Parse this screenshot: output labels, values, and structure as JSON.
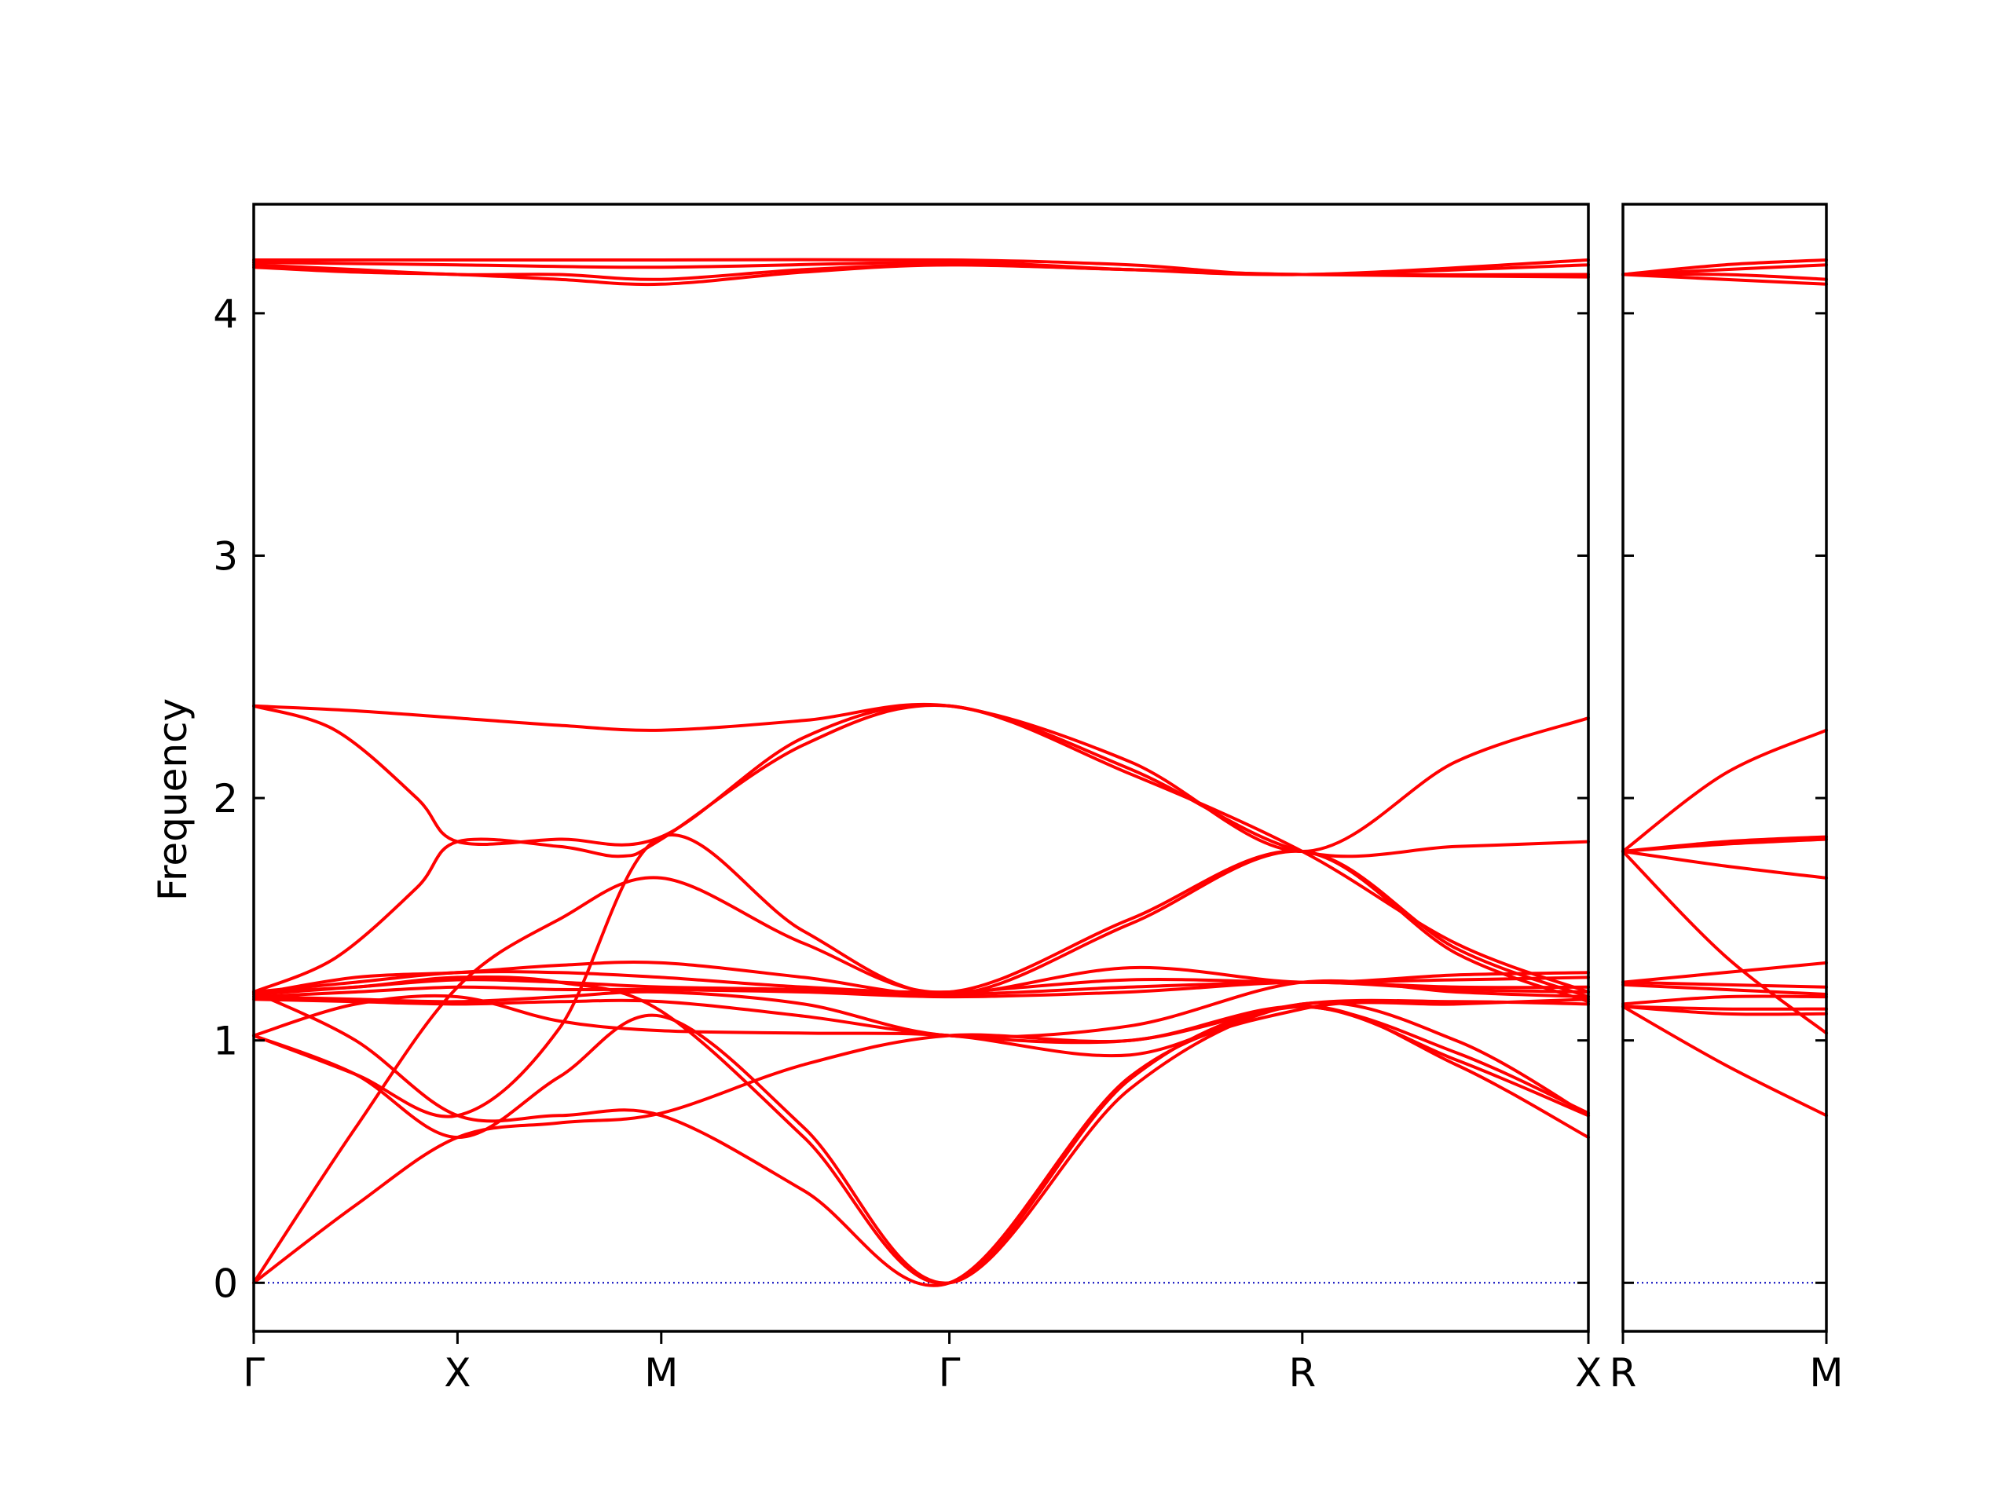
{
  "chart_data": {
    "type": "line",
    "title": "",
    "ylabel": "Frequency",
    "xlabel": "",
    "ylim": [
      -0.2,
      4.45
    ],
    "yticks": [
      0,
      1,
      2,
      3,
      4
    ],
    "grid": false,
    "zero_line": 0,
    "colors": {
      "bands": "#ff0000",
      "zero_line": "#0000bb"
    },
    "panels": [
      {
        "name": "main",
        "xlim": [
          0,
          6.55
        ],
        "kpoints": [
          {
            "label": "Γ",
            "x": 0
          },
          {
            "label": "X",
            "x": 1
          },
          {
            "label": "M",
            "x": 2
          },
          {
            "label": "Γ",
            "x": 3.414
          },
          {
            "label": "R",
            "x": 5.146
          },
          {
            "label": "X",
            "x": 6.55
          }
        ],
        "bands": [
          [
            [
              0,
              4.22
            ],
            [
              1,
              4.22
            ],
            [
              2,
              4.22
            ],
            [
              3.414,
              4.22
            ],
            [
              4.3,
              4.2
            ],
            [
              5.146,
              4.16
            ],
            [
              6.55,
              4.22
            ]
          ],
          [
            [
              0,
              4.21
            ],
            [
              1,
              4.2
            ],
            [
              2,
              4.19
            ],
            [
              3.414,
              4.21
            ],
            [
              4.3,
              4.18
            ],
            [
              5.146,
              4.16
            ],
            [
              6.55,
              4.2
            ]
          ],
          [
            [
              0,
              4.2
            ],
            [
              0.5,
              4.18
            ],
            [
              1,
              4.16
            ],
            [
              1.5,
              4.16
            ],
            [
              2,
              4.14
            ],
            [
              2.7,
              4.18
            ],
            [
              3.414,
              4.2
            ],
            [
              4.3,
              4.18
            ],
            [
              5.146,
              4.16
            ],
            [
              6.55,
              4.16
            ]
          ],
          [
            [
              0,
              4.19
            ],
            [
              0.5,
              4.17
            ],
            [
              1,
              4.16
            ],
            [
              1.5,
              4.14
            ],
            [
              2,
              4.12
            ],
            [
              2.7,
              4.17
            ],
            [
              3.414,
              4.2
            ],
            [
              4.3,
              4.18
            ],
            [
              5.146,
              4.16
            ],
            [
              6.55,
              4.15
            ]
          ],
          [
            [
              0,
              2.38
            ],
            [
              0.5,
              2.36
            ],
            [
              1,
              2.33
            ],
            [
              1.5,
              2.3
            ],
            [
              2,
              2.28
            ],
            [
              2.7,
              2.32
            ],
            [
              3.414,
              2.38
            ],
            [
              4.3,
              2.15
            ],
            [
              5.146,
              1.78
            ],
            [
              5.9,
              2.15
            ],
            [
              6.55,
              2.33
            ]
          ],
          [
            [
              0,
              2.38
            ],
            [
              0.4,
              2.28
            ],
            [
              0.8,
              2.0
            ],
            [
              1,
              1.82
            ],
            [
              1.5,
              1.83
            ],
            [
              2,
              1.84
            ],
            [
              2.7,
              2.25
            ],
            [
              3.414,
              2.38
            ],
            [
              4.3,
              2.12
            ],
            [
              5.146,
              1.78
            ],
            [
              5.9,
              1.8
            ],
            [
              6.55,
              1.82
            ]
          ],
          [
            [
              0,
              1.2
            ],
            [
              0.4,
              1.34
            ],
            [
              0.8,
              1.63
            ],
            [
              1,
              1.82
            ],
            [
              1.5,
              1.8
            ],
            [
              1.8,
              1.76
            ],
            [
              2,
              1.83
            ],
            [
              2.7,
              2.22
            ],
            [
              3.414,
              2.38
            ],
            [
              4.3,
              2.1
            ],
            [
              5.146,
              1.78
            ],
            [
              5.9,
              1.4
            ],
            [
              6.55,
              1.2
            ]
          ],
          [
            [
              0,
              1.02
            ],
            [
              0.5,
              0.86
            ],
            [
              1,
              0.69
            ],
            [
              1.5,
              1.05
            ],
            [
              2,
              1.84
            ],
            [
              2.7,
              1.45
            ],
            [
              3.414,
              1.19
            ],
            [
              4.3,
              1.48
            ],
            [
              5.146,
              1.78
            ],
            [
              5.9,
              1.38
            ],
            [
              6.55,
              1.18
            ]
          ],
          [
            [
              0,
              0
            ],
            [
              0.5,
              0.64
            ],
            [
              1,
              1.22
            ],
            [
              1.5,
              1.5
            ],
            [
              2,
              1.67
            ],
            [
              2.7,
              1.4
            ],
            [
              3.414,
              1.2
            ],
            [
              4.3,
              1.5
            ],
            [
              5.146,
              1.78
            ],
            [
              5.9,
              1.36
            ],
            [
              6.55,
              1.16
            ]
          ],
          [
            [
              0,
              1.19
            ],
            [
              0.5,
              1.26
            ],
            [
              1,
              1.28
            ],
            [
              1.5,
              1.31
            ],
            [
              2,
              1.32
            ],
            [
              2.7,
              1.26
            ],
            [
              3.414,
              1.19
            ],
            [
              4.3,
              1.3
            ],
            [
              5.146,
              1.24
            ],
            [
              5.9,
              1.27
            ],
            [
              6.55,
              1.28
            ]
          ],
          [
            [
              0,
              1.2
            ],
            [
              0.5,
              1.24
            ],
            [
              1,
              1.28
            ],
            [
              1.5,
              1.28
            ],
            [
              2,
              1.26
            ],
            [
              2.7,
              1.22
            ],
            [
              3.414,
              1.2
            ],
            [
              4.3,
              1.25
            ],
            [
              5.146,
              1.24
            ],
            [
              5.9,
              1.25
            ],
            [
              6.55,
              1.26
            ]
          ],
          [
            [
              0,
              1.19
            ],
            [
              0.5,
              1.22
            ],
            [
              1,
              1.25
            ],
            [
              1.5,
              1.24
            ],
            [
              2,
              1.22
            ],
            [
              2.7,
              1.21
            ],
            [
              3.414,
              1.19
            ],
            [
              4.3,
              1.22
            ],
            [
              5.146,
              1.24
            ],
            [
              5.9,
              1.22
            ],
            [
              6.55,
              1.22
            ]
          ],
          [
            [
              0,
              1.18
            ],
            [
              0.5,
              1.2
            ],
            [
              1,
              1.22
            ],
            [
              1.5,
              1.21
            ],
            [
              2,
              1.21
            ],
            [
              2.7,
              1.2
            ],
            [
              3.414,
              1.18
            ],
            [
              4.3,
              1.2
            ],
            [
              5.146,
              1.24
            ],
            [
              5.9,
              1.21
            ],
            [
              6.55,
              1.2
            ]
          ],
          [
            [
              0,
              1.18
            ],
            [
              0.5,
              1.17
            ],
            [
              1,
              1.16
            ],
            [
              1.5,
              1.18
            ],
            [
              2,
              1.2
            ],
            [
              2.7,
              1.15
            ],
            [
              3.414,
              1.02
            ],
            [
              4.3,
              1.06
            ],
            [
              5.146,
              1.24
            ],
            [
              5.9,
              1.2
            ],
            [
              6.55,
              1.18
            ]
          ],
          [
            [
              0,
              1.17
            ],
            [
              0.5,
              1.16
            ],
            [
              1,
              1.15
            ],
            [
              1.5,
              1.16
            ],
            [
              2,
              1.16
            ],
            [
              2.7,
              1.1
            ],
            [
              3.414,
              1.02
            ],
            [
              4.3,
              1.0
            ],
            [
              5.146,
              1.15
            ],
            [
              5.9,
              1.16
            ],
            [
              6.55,
              1.15
            ]
          ],
          [
            [
              0,
              1.02
            ],
            [
              0.5,
              1.15
            ],
            [
              1,
              1.18
            ],
            [
              1.5,
              1.08
            ],
            [
              2,
              1.04
            ],
            [
              2.7,
              1.03
            ],
            [
              3.414,
              1.02
            ],
            [
              4.3,
              0.94
            ],
            [
              5.146,
              1.14
            ],
            [
              5.9,
              0.92
            ],
            [
              6.55,
              0.69
            ]
          ],
          [
            [
              0,
              1.2
            ],
            [
              0.5,
              1.22
            ],
            [
              1,
              1.26
            ],
            [
              1.5,
              1.24
            ],
            [
              2,
              1.12
            ],
            [
              2.7,
              0.6
            ],
            [
              3.414,
              0
            ],
            [
              4.3,
              0.84
            ],
            [
              5.146,
              1.14
            ],
            [
              5.9,
              0.9
            ],
            [
              6.55,
              0.6
            ]
          ],
          [
            [
              0,
              0
            ],
            [
              0.5,
              0.32
            ],
            [
              1,
              0.6
            ],
            [
              1.5,
              0.66
            ],
            [
              2,
              0.7
            ],
            [
              2.7,
              0.9
            ],
            [
              3.414,
              1.02
            ],
            [
              4.3,
              1.0
            ],
            [
              5.146,
              1.14
            ],
            [
              5.9,
              0.95
            ],
            [
              6.55,
              0.7
            ]
          ],
          [
            [
              0,
              1.02
            ],
            [
              0.5,
              0.86
            ],
            [
              1,
              0.6
            ],
            [
              1.5,
              0.85
            ],
            [
              2,
              1.1
            ],
            [
              2.7,
              0.64
            ],
            [
              3.414,
              0
            ],
            [
              4.3,
              0.8
            ],
            [
              5.146,
              1.15
            ],
            [
              5.9,
              1.0
            ],
            [
              6.55,
              0.69
            ]
          ],
          [
            [
              0,
              1.2
            ],
            [
              0.5,
              1.0
            ],
            [
              1,
              0.69
            ],
            [
              1.5,
              0.69
            ],
            [
              2,
              0.69
            ],
            [
              2.7,
              0.38
            ],
            [
              3.414,
              0
            ],
            [
              4.3,
              0.85
            ],
            [
              5.146,
              1.13
            ],
            [
              5.9,
              1.15
            ],
            [
              6.55,
              1.17
            ]
          ]
        ]
      },
      {
        "name": "right",
        "xlim": [
          0,
          1
        ],
        "kpoints": [
          {
            "label": "R",
            "x": 0
          },
          {
            "label": "M",
            "x": 1
          }
        ],
        "bands": [
          [
            [
              0,
              4.16
            ],
            [
              0.5,
              4.2
            ],
            [
              1,
              4.22
            ]
          ],
          [
            [
              0,
              4.16
            ],
            [
              0.5,
              4.18
            ],
            [
              1,
              4.2
            ]
          ],
          [
            [
              0,
              4.16
            ],
            [
              0.5,
              4.16
            ],
            [
              1,
              4.14
            ]
          ],
          [
            [
              0,
              4.16
            ],
            [
              0.5,
              4.14
            ],
            [
              1,
              4.12
            ]
          ],
          [
            [
              0,
              1.78
            ],
            [
              0.5,
              2.1
            ],
            [
              1,
              2.28
            ]
          ],
          [
            [
              0,
              1.78
            ],
            [
              0.5,
              1.82
            ],
            [
              1,
              1.84
            ]
          ],
          [
            [
              0,
              1.78
            ],
            [
              0.5,
              1.81
            ],
            [
              1,
              1.83
            ]
          ],
          [
            [
              0,
              1.78
            ],
            [
              0.5,
              1.72
            ],
            [
              1,
              1.67
            ]
          ],
          [
            [
              0,
              1.78
            ],
            [
              0.5,
              1.35
            ],
            [
              1,
              1.03
            ]
          ],
          [
            [
              0,
              1.24
            ],
            [
              0.5,
              1.28
            ],
            [
              1,
              1.32
            ]
          ],
          [
            [
              0,
              1.24
            ],
            [
              0.5,
              1.23
            ],
            [
              1,
              1.22
            ]
          ],
          [
            [
              0,
              1.23
            ],
            [
              0.5,
              1.21
            ],
            [
              1,
              1.19
            ]
          ],
          [
            [
              0,
              1.15
            ],
            [
              0.5,
              1.18
            ],
            [
              1,
              1.18
            ]
          ],
          [
            [
              0,
              1.14
            ],
            [
              0.5,
              1.13
            ],
            [
              1,
              1.13
            ]
          ],
          [
            [
              0,
              1.14
            ],
            [
              0.5,
              1.11
            ],
            [
              1,
              1.11
            ]
          ],
          [
            [
              0,
              1.14
            ],
            [
              0.5,
              0.9
            ],
            [
              1,
              0.69
            ]
          ]
        ]
      }
    ]
  }
}
